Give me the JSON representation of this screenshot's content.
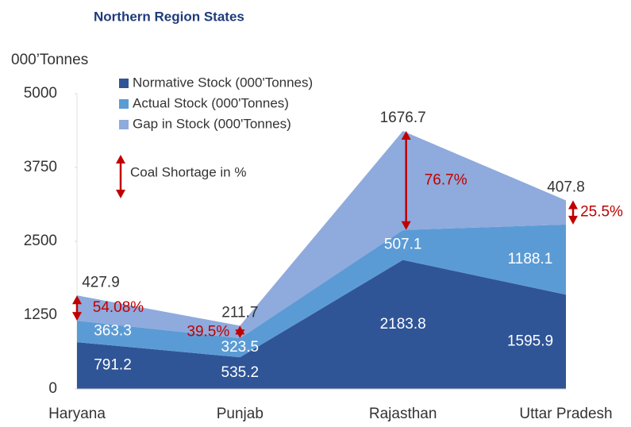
{
  "chart_data": {
    "type": "area",
    "stacked": true,
    "title": "Northern Region States",
    "y_axis_label": "000’Tonnes",
    "categories": [
      "Haryana",
      "Punjab",
      "Rajasthan",
      "Uttar Pradesh"
    ],
    "series": [
      {
        "name": "Normative Stock (000'Tonnes)",
        "color": "#2f5597",
        "values": [
          791.2,
          535.2,
          2183.8,
          1595.9
        ]
      },
      {
        "name": "Actual Stock (000'Tonnes)",
        "color": "#5b9bd5",
        "values": [
          363.3,
          323.5,
          507.1,
          1188.1
        ]
      },
      {
        "name": "Gap in Stock (000'Tonnes)",
        "color": "#8faadc",
        "values": [
          427.9,
          211.7,
          1676.7,
          407.8
        ]
      }
    ],
    "shortage": {
      "name": "Coal Shortage in %",
      "color": "#c00000",
      "values": [
        54.08,
        39.5,
        76.7,
        25.5
      ],
      "value_labels": [
        "54.08%",
        "39.5%",
        "76.7%",
        "25.5%"
      ]
    },
    "ylim": [
      0,
      5000
    ],
    "yticks": [
      0,
      1250,
      2500,
      3750,
      5000
    ],
    "grid": false
  }
}
